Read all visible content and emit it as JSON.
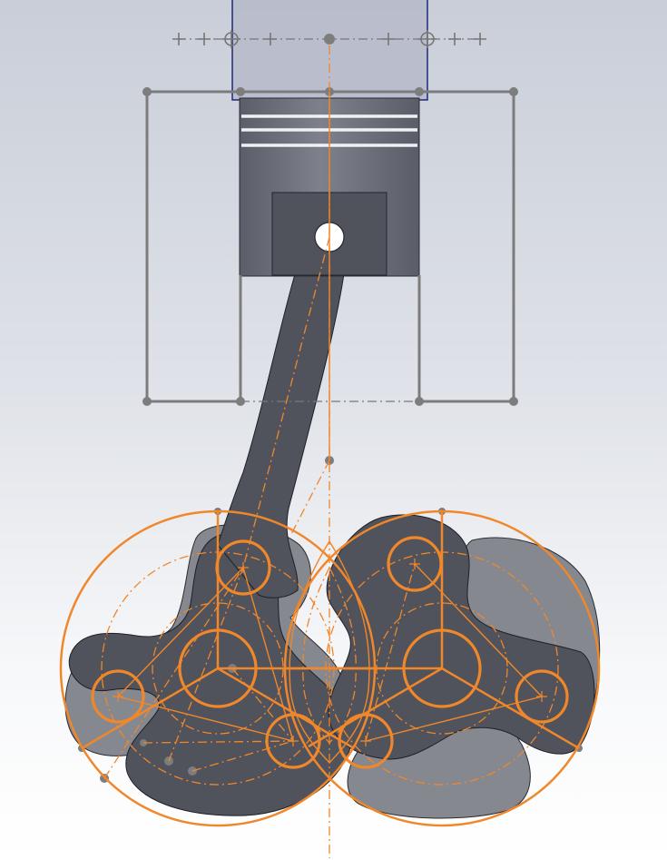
{
  "viewport": {
    "background_top": "#c9ced8",
    "background_bottom": "#ffffff"
  },
  "colors": {
    "sketch_orange": "#f0872a",
    "sketch_gray": "#7c7c7c",
    "part_dark": "#50535c",
    "part_ghost": "#868890",
    "cylinder_fill": "#b7bccb",
    "cylinder_edge": "#1c2a78"
  },
  "components": [
    {
      "name": "cylinder-block",
      "state": "selected"
    },
    {
      "name": "piston"
    },
    {
      "name": "connecting-rod"
    },
    {
      "name": "crank-rotor-left",
      "lobes": 3
    },
    {
      "name": "crank-rotor-right",
      "lobes": 3
    }
  ],
  "icons": [
    "sketch-point-icon",
    "sketch-pierce-point-icon"
  ]
}
